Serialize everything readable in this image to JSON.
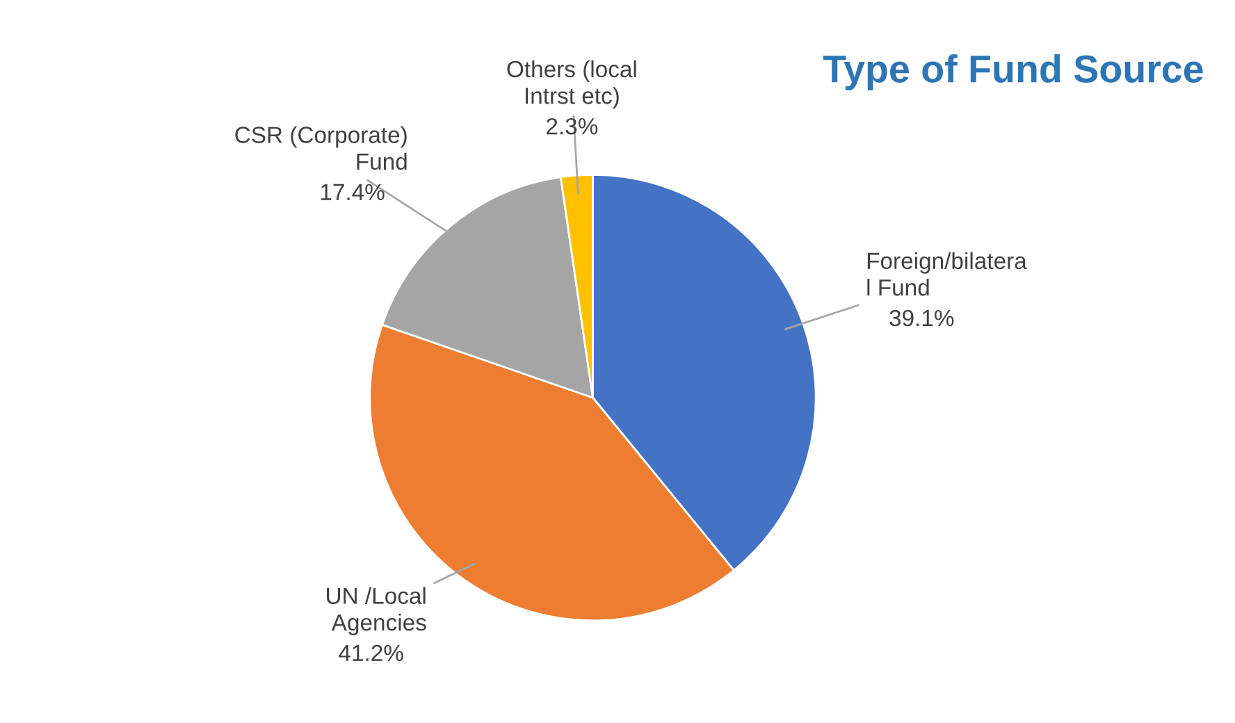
{
  "chart_data": {
    "type": "pie",
    "title": "Type of Fund Source",
    "categories": [
      "Foreign/bilatera\nl Fund",
      "UN /Local\nAgencies",
      "CSR (Corporate)\nFund",
      "Others (local\nIntrst etc)"
    ],
    "values": [
      39.1,
      41.2,
      17.4,
      2.3
    ],
    "colors": [
      "#4472c4",
      "#ed7d31",
      "#a5a5a5",
      "#ffc000"
    ],
    "value_labels": [
      "39.1%",
      "41.2%",
      "17.4%",
      "2.3%"
    ],
    "legend": false
  }
}
